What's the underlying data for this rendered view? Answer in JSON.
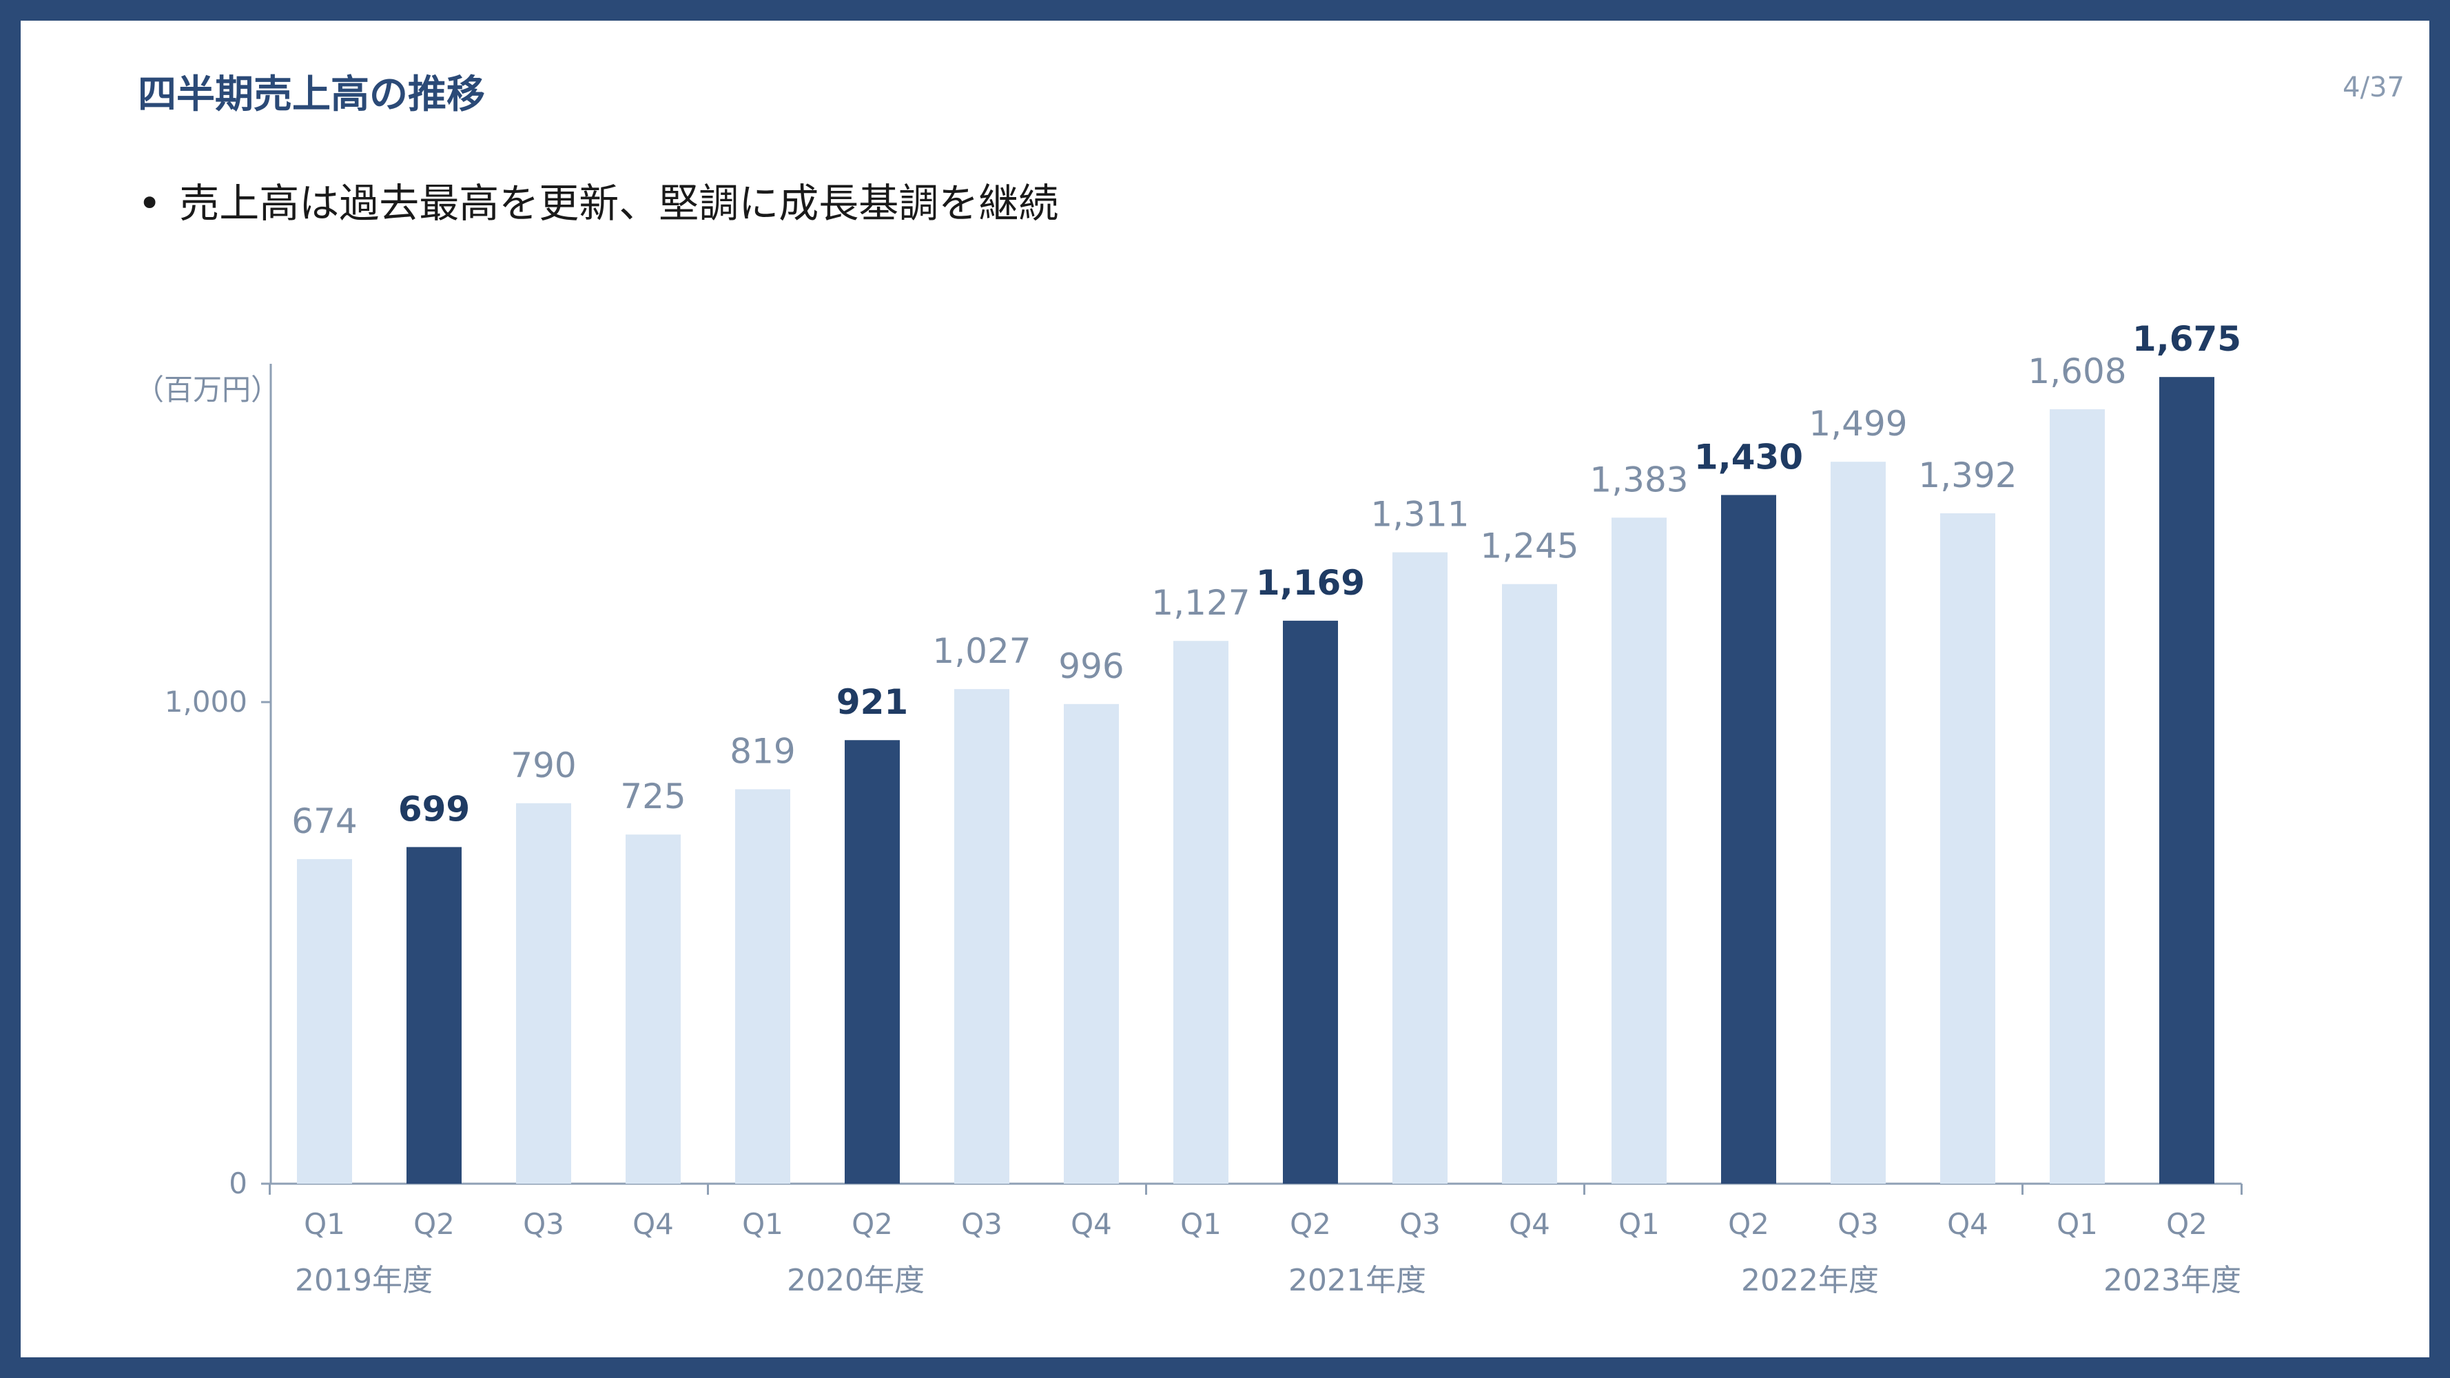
{
  "slide": {
    "title": "四半期売上高の推移",
    "page": "4/37",
    "bullet": "売上高は過去最高を更新、堅調に成長基調を継続"
  },
  "colors": {
    "border": "#2b4a77",
    "highlight_bar": "#2b4a77",
    "normal_bar": "#d9e6f4",
    "normal_label": "#7e8fa6",
    "highlight_label": "#1f3b63",
    "axis": "#8fa0b5"
  },
  "chart_data": {
    "type": "bar",
    "unit": "（百万円）",
    "categories": [
      "Q1",
      "Q2",
      "Q3",
      "Q4",
      "Q1",
      "Q2",
      "Q3",
      "Q4",
      "Q1",
      "Q2",
      "Q3",
      "Q4",
      "Q1",
      "Q2",
      "Q3",
      "Q4",
      "Q1",
      "Q2"
    ],
    "values": [
      674,
      699,
      790,
      725,
      819,
      921,
      1027,
      996,
      1127,
      1169,
      1311,
      1245,
      1383,
      1430,
      1499,
      1392,
      1608,
      1675
    ],
    "value_labels": [
      "674",
      "699",
      "790",
      "725",
      "819",
      "921",
      "1,027",
      "996",
      "1,127",
      "1,169",
      "1,311",
      "1,245",
      "1,383",
      "1,430",
      "1,499",
      "1,392",
      "1,608",
      "1,675"
    ],
    "highlighted": [
      false,
      true,
      false,
      false,
      false,
      true,
      false,
      false,
      false,
      true,
      false,
      false,
      false,
      true,
      false,
      false,
      false,
      true
    ],
    "year_groups": [
      {
        "label": "2019年度",
        "start": 0,
        "end": 3
      },
      {
        "label": "2020年度",
        "start": 4,
        "end": 7
      },
      {
        "label": "2021年度",
        "start": 8,
        "end": 11
      },
      {
        "label": "2022年度",
        "start": 12,
        "end": 15
      },
      {
        "label": "2023年度",
        "start": 16,
        "end": 17
      }
    ],
    "y_ticks": [
      {
        "value": 0,
        "label": "0"
      },
      {
        "value": 1000,
        "label": "1,000"
      }
    ],
    "ylim": [
      0,
      2000
    ],
    "grid": false,
    "legend": "none"
  }
}
